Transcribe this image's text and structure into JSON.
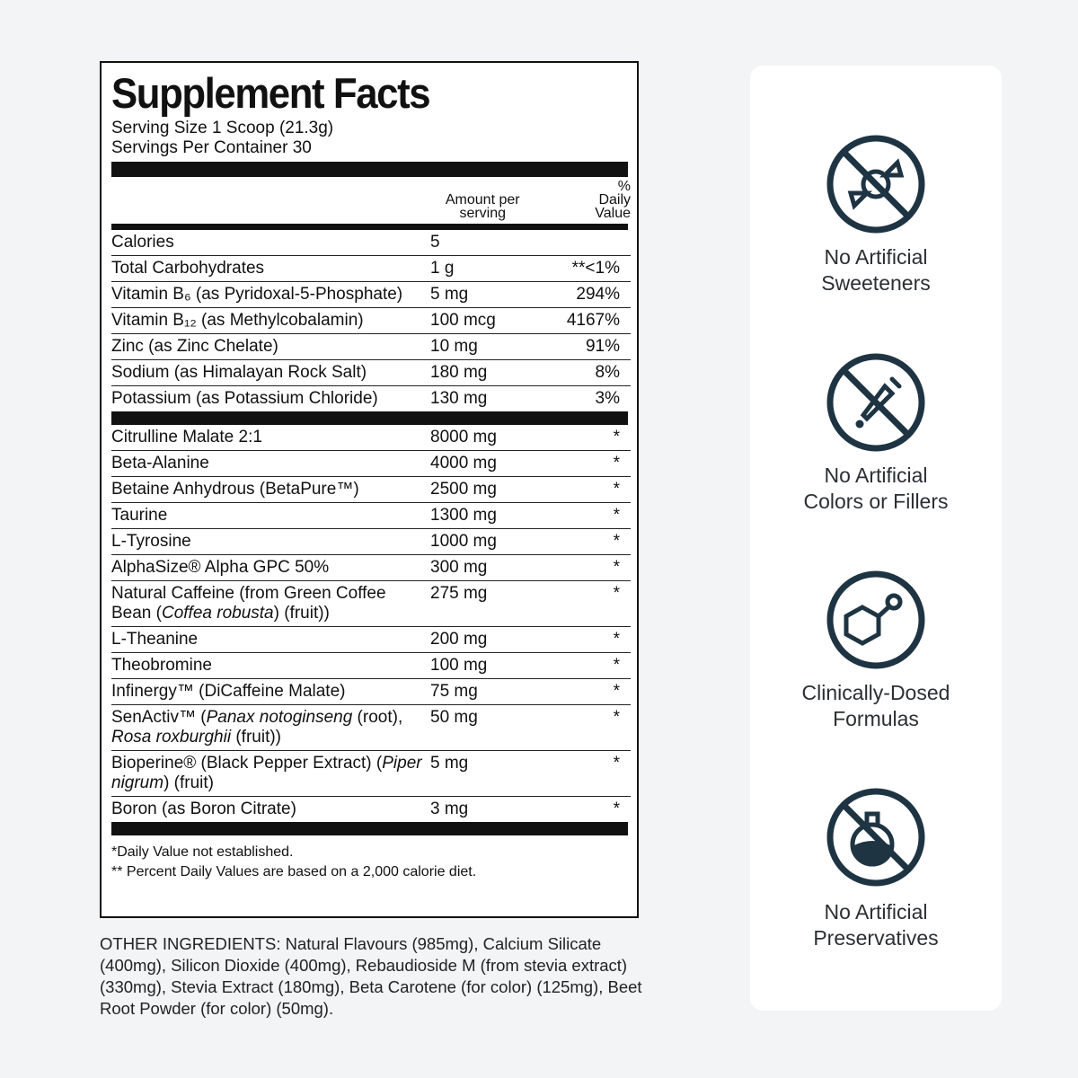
{
  "facts": {
    "title": "Supplement Facts",
    "serving_size": "Serving Size 1 Scoop (21.3g)",
    "servings_per_container": "Servings Per Container 30",
    "header": {
      "amount": [
        "Amount per",
        "serving"
      ],
      "daily_value": "% Daily Value"
    },
    "vitamins": [
      {
        "name": "Calories",
        "amount": "5",
        "dv": ""
      },
      {
        "name": "Total Carbohydrates",
        "amount": "1 g",
        "dv": "**<1%"
      },
      {
        "name": "Vitamin B₆ (as Pyridoxal-5-Phosphate)",
        "amount": "5 mg",
        "dv": "294%"
      },
      {
        "name": "Vitamin B₁₂ (as Methylcobalamin)",
        "amount": "100 mcg",
        "dv": "4167%"
      },
      {
        "name": "Zinc (as Zinc Chelate)",
        "amount": "10 mg",
        "dv": "91%"
      },
      {
        "name": "Sodium (as Himalayan Rock Salt)",
        "amount": "180 mg",
        "dv": "8%"
      },
      {
        "name": "Potassium (as Potassium Chloride)",
        "amount": "130 mg",
        "dv": "3%"
      }
    ],
    "ingredients": [
      {
        "name": "Citrulline Malate 2:1",
        "amount": "8000 mg",
        "dv": "*"
      },
      {
        "name": "Beta-Alanine",
        "amount": "4000 mg",
        "dv": "*"
      },
      {
        "name": "Betaine Anhydrous (BetaPure™)",
        "amount": "2500 mg",
        "dv": "*"
      },
      {
        "name": "Taurine",
        "amount": "1300 mg",
        "dv": "*"
      },
      {
        "name": "L-Tyrosine",
        "amount": "1000 mg",
        "dv": "*"
      },
      {
        "name": "AlphaSize® Alpha GPC 50%",
        "amount": "300 mg",
        "dv": "*"
      },
      {
        "name": [
          "Natural Caffeine (from Green Coffee Bean (",
          "Coffea robusta",
          ") (fruit))"
        ],
        "amount": "275 mg",
        "dv": "*"
      },
      {
        "name": "L-Theanine",
        "amount": "200 mg",
        "dv": "*"
      },
      {
        "name": "Theobromine",
        "amount": "100 mg",
        "dv": "*"
      },
      {
        "name": "Infinergy™ (DiCaffeine Malate)",
        "amount": "75 mg",
        "dv": "*"
      },
      {
        "name": [
          "SenActiv™ (",
          "Panax notoginseng",
          " (root), ",
          "Rosa roxburghii",
          " (fruit))"
        ],
        "amount": "50 mg",
        "dv": "*"
      },
      {
        "name": [
          "Bioperine® (Black Pepper Extract) (",
          "Piper nigrum",
          ") (fruit)"
        ],
        "amount": "5 mg",
        "dv": "*"
      },
      {
        "name": "Boron (as Boron Citrate)",
        "amount": "3 mg",
        "dv": "*"
      }
    ],
    "footnotes": [
      "*Daily Value not established.",
      "** Percent Daily Values are based on a 2,000 calorie diet."
    ]
  },
  "other_ingredients": "OTHER INGREDIENTS: Natural Flavours (985mg), Calcium Silicate (400mg), Silicon Dioxide (400mg), Rebaudioside M (from stevia extract) (330mg), Stevia Extract (180mg), Beta Carotene (for color) (125mg), Beet Root Powder (for color) (50mg).",
  "features": [
    [
      "No Artificial",
      "Sweeteners"
    ],
    [
      "No Artificial",
      "Colors or Fillers"
    ],
    [
      "Clinically-Dosed",
      "Formulas"
    ],
    [
      "No Artificial",
      "Preservatives"
    ]
  ]
}
